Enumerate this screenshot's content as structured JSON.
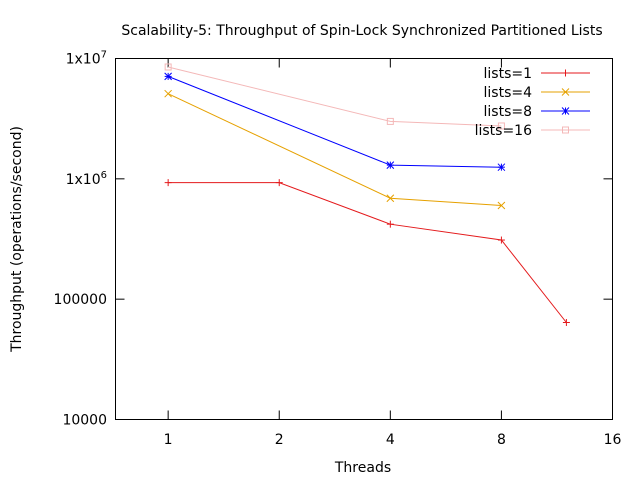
{
  "chart_data": {
    "type": "line",
    "title": "Scalability-5: Throughput of Spin-Lock Synchronized Partitioned Lists",
    "xlabel": "Threads",
    "ylabel": "Throughput (operations/second)",
    "x_scale": "log2",
    "y_scale": "log10",
    "xlim": [
      0.72,
      16
    ],
    "ylim": [
      10000,
      10000000
    ],
    "x_ticks": [
      {
        "value": 1,
        "label": "1"
      },
      {
        "value": 2,
        "label": "2"
      },
      {
        "value": 4,
        "label": "4"
      },
      {
        "value": 8,
        "label": "8"
      },
      {
        "value": 16,
        "label": "16"
      }
    ],
    "y_ticks": [
      {
        "value": 10000,
        "label": "10000",
        "sup": ""
      },
      {
        "value": 100000,
        "label": "100000",
        "sup": ""
      },
      {
        "value": 1000000,
        "label": "1x10",
        "sup": "6"
      },
      {
        "value": 10000000,
        "label": "1x10",
        "sup": "7"
      }
    ],
    "grid": false,
    "legend_position": "top-right",
    "series": [
      {
        "name": "lists=1",
        "color": "#e41a1c",
        "marker": "plus",
        "x": [
          1,
          2,
          4,
          8,
          12
        ],
        "y": [
          930000,
          930000,
          420000,
          310000,
          64000
        ]
      },
      {
        "name": "lists=4",
        "color": "#e6a100",
        "marker": "cross",
        "x": [
          1,
          4,
          8
        ],
        "y": [
          5100000,
          690000,
          600000
        ]
      },
      {
        "name": "lists=8",
        "color": "#0000ff",
        "marker": "star",
        "x": [
          1,
          4,
          8
        ],
        "y": [
          7100000,
          1300000,
          1250000
        ]
      },
      {
        "name": "lists=16",
        "color": "#f4b8b8",
        "marker": "square",
        "x": [
          1,
          4,
          8
        ],
        "y": [
          8500000,
          3000000,
          2750000
        ]
      }
    ]
  }
}
